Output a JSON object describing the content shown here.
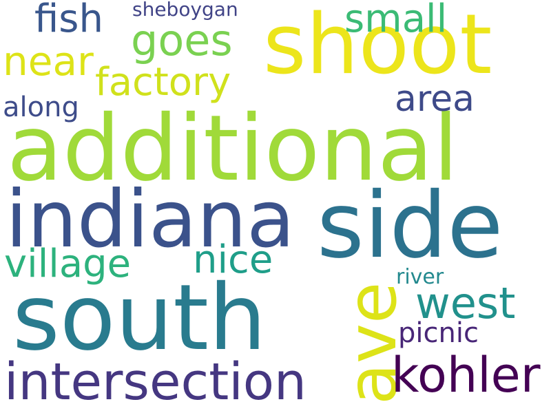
{
  "background": "#ffffff",
  "words": [
    {
      "id": "additional",
      "text": "additional",
      "color": "#a0da39"
    },
    {
      "id": "indiana",
      "text": "indiana",
      "color": "#3b528b"
    },
    {
      "id": "side",
      "text": "side",
      "color": "#2c728e"
    },
    {
      "id": "south",
      "text": "south",
      "color": "#297b8e"
    },
    {
      "id": "shoot",
      "text": "shoot",
      "color": "#ece51b"
    },
    {
      "id": "intersection",
      "text": "intersection",
      "color": "#453781"
    },
    {
      "id": "ave",
      "text": "ave",
      "color": "#dde318"
    },
    {
      "id": "kohler",
      "text": "kohler",
      "color": "#440154"
    },
    {
      "id": "village",
      "text": "village",
      "color": "#2db27d"
    },
    {
      "id": "west",
      "text": "west",
      "color": "#21918c"
    },
    {
      "id": "goes",
      "text": "goes",
      "color": "#7ad151"
    },
    {
      "id": "factory",
      "text": "factory",
      "color": "#d0e11c"
    },
    {
      "id": "nice",
      "text": "nice",
      "color": "#1f9e89"
    },
    {
      "id": "near",
      "text": "near",
      "color": "#dde318"
    },
    {
      "id": "fish",
      "text": "fish",
      "color": "#39568c"
    },
    {
      "id": "small",
      "text": "small",
      "color": "#3bbb75"
    },
    {
      "id": "area",
      "text": "area",
      "color": "#3e4a89"
    },
    {
      "id": "picnic",
      "text": "picnic",
      "color": "#482677"
    },
    {
      "id": "along",
      "text": "along",
      "color": "#3e4c8a"
    },
    {
      "id": "river",
      "text": "river",
      "color": "#23898e"
    },
    {
      "id": "sheboygan",
      "text": "sheboygan",
      "color": "#414487"
    }
  ]
}
